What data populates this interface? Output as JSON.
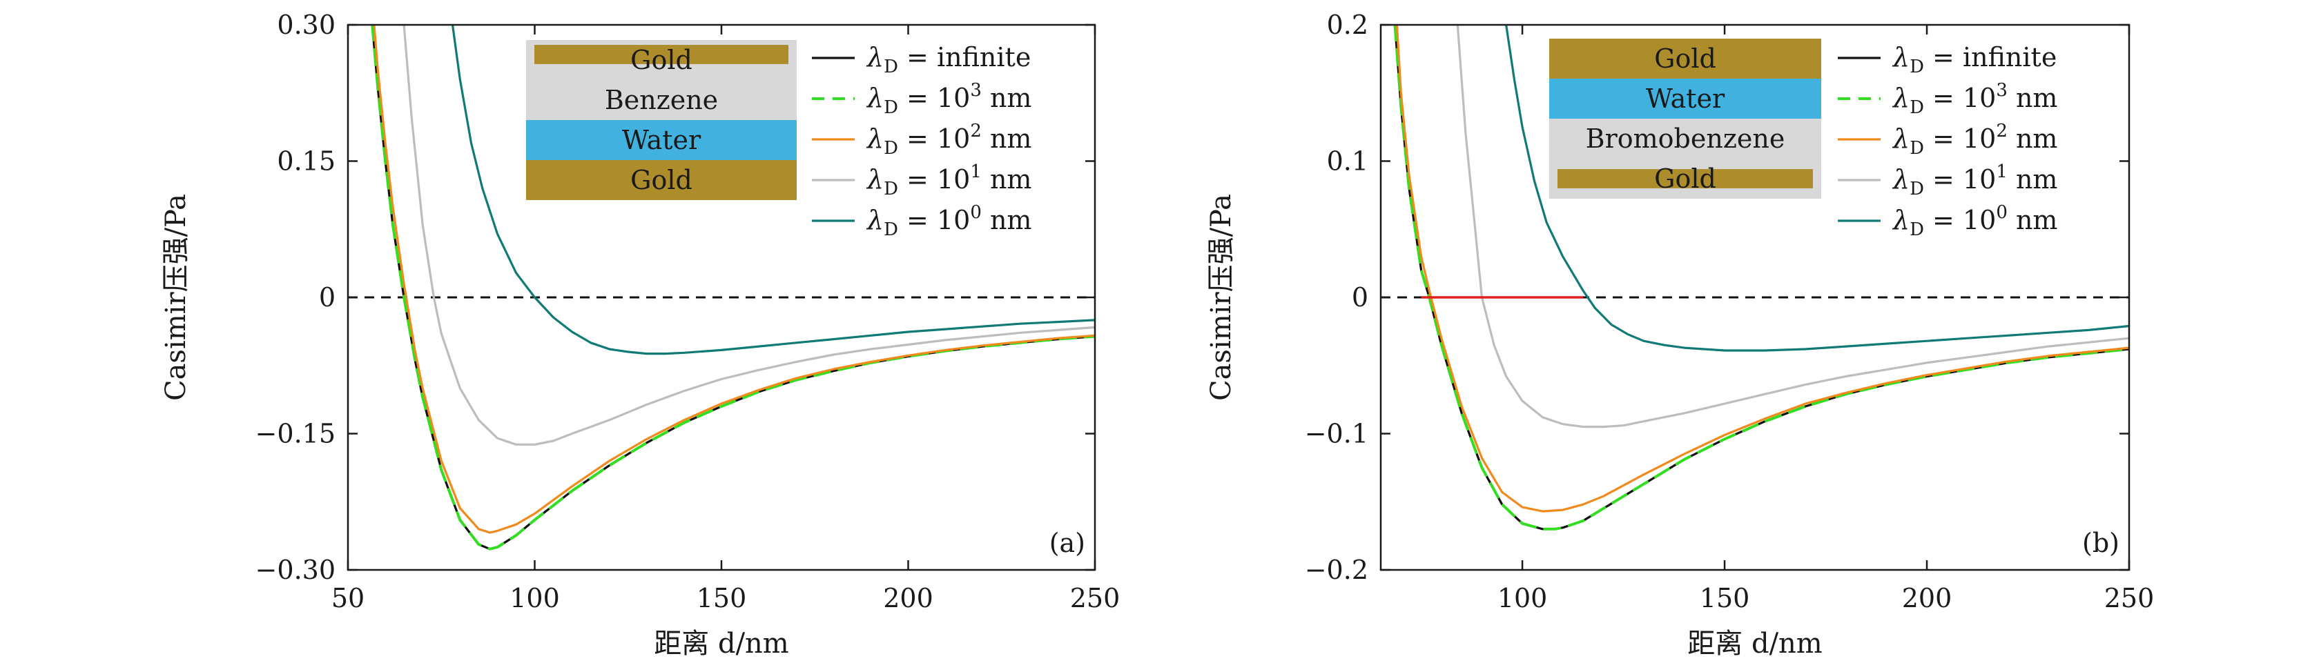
{
  "figure": {
    "background": "#ffffff"
  },
  "colors": {
    "infinite": "#111111",
    "l3": "#33dd22",
    "l2": "#f08a1c",
    "l1": "#bdbdbd",
    "l0": "#0f7a76",
    "gold": "#ad8c2c",
    "water": "#41b1e0",
    "liquid": "#d8d8d8",
    "zero_line": "#111111",
    "highlight": "#e02020"
  },
  "chart_data": [
    {
      "type": "line",
      "panel_label": "(a)",
      "xlabel": "距离 d/nm",
      "ylabel": "Casimir压强/Pa",
      "xlim": [
        50,
        250
      ],
      "ylim": [
        -0.3,
        0.3
      ],
      "xticks": [
        50,
        100,
        150,
        200,
        250
      ],
      "xtick_labels": [
        "50",
        "100",
        "150",
        "200",
        "250"
      ],
      "yticks": [
        0.3,
        0.15,
        0,
        -0.15,
        -0.3
      ],
      "ytick_labels": [
        "0.30",
        "0.15",
        "0",
        "−0.15",
        "−0.30"
      ],
      "zero_line": true,
      "highlight_segment": null,
      "legend": {
        "position": "top-right",
        "entries": [
          {
            "prefix": "λ",
            "sub": "D",
            "mid": " = ",
            "base": "infinite",
            "sup": "",
            "unit": ""
          },
          {
            "prefix": "λ",
            "sub": "D",
            "mid": " = ",
            "base": "10",
            "sup": "3",
            "unit": " nm"
          },
          {
            "prefix": "λ",
            "sub": "D",
            "mid": " = ",
            "base": "10",
            "sup": "2",
            "unit": " nm"
          },
          {
            "prefix": "λ",
            "sub": "D",
            "mid": " = ",
            "base": "10",
            "sup": "1",
            "unit": " nm"
          },
          {
            "prefix": "λ",
            "sub": "D",
            "mid": " = ",
            "base": "10",
            "sup": "0",
            "unit": " nm"
          }
        ]
      },
      "layers": [
        {
          "label": "Gold",
          "kind": "gold-thin"
        },
        {
          "label": "Benzene",
          "kind": "liquid"
        },
        {
          "label": "Water",
          "kind": "water"
        },
        {
          "label": "Gold",
          "kind": "gold"
        }
      ],
      "series": [
        {
          "name": "λD = infinite",
          "color_key": "infinite",
          "dash": "none",
          "x": [
            56.5,
            58,
            60,
            62,
            65,
            68,
            70,
            75,
            80,
            85,
            88,
            90,
            95,
            100,
            110,
            120,
            130,
            140,
            150,
            160,
            170,
            180,
            190,
            200,
            210,
            220,
            230,
            240,
            250
          ],
          "y": [
            0.3,
            0.23,
            0.15,
            0.08,
            0.0,
            -0.07,
            -0.11,
            -0.19,
            -0.245,
            -0.272,
            -0.277,
            -0.275,
            -0.262,
            -0.245,
            -0.213,
            -0.185,
            -0.16,
            -0.138,
            -0.12,
            -0.104,
            -0.091,
            -0.081,
            -0.072,
            -0.065,
            -0.059,
            -0.054,
            -0.05,
            -0.046,
            -0.043
          ]
        },
        {
          "name": "λD = 10^3 nm",
          "color_key": "l3",
          "dash": "dashed",
          "x": [
            56.5,
            58,
            60,
            62,
            65,
            68,
            70,
            75,
            80,
            85,
            88,
            90,
            95,
            100,
            110,
            120,
            130,
            140,
            150,
            160,
            170,
            180,
            190,
            200,
            210,
            220,
            230,
            240,
            250
          ],
          "y": [
            0.3,
            0.23,
            0.15,
            0.08,
            0.0,
            -0.07,
            -0.11,
            -0.19,
            -0.245,
            -0.272,
            -0.277,
            -0.275,
            -0.262,
            -0.245,
            -0.213,
            -0.185,
            -0.16,
            -0.138,
            -0.12,
            -0.104,
            -0.091,
            -0.081,
            -0.072,
            -0.065,
            -0.059,
            -0.054,
            -0.05,
            -0.046,
            -0.043
          ]
        },
        {
          "name": "λD = 10^2 nm",
          "color_key": "l2",
          "dash": "none",
          "x": [
            57,
            58,
            60,
            62,
            65,
            68,
            70,
            75,
            80,
            85,
            88,
            90,
            95,
            100,
            110,
            120,
            130,
            140,
            150,
            160,
            170,
            180,
            190,
            200,
            210,
            220,
            230,
            240,
            250
          ],
          "y": [
            0.3,
            0.25,
            0.17,
            0.1,
            0.015,
            -0.06,
            -0.1,
            -0.18,
            -0.232,
            -0.255,
            -0.259,
            -0.257,
            -0.25,
            -0.238,
            -0.208,
            -0.18,
            -0.156,
            -0.135,
            -0.117,
            -0.102,
            -0.089,
            -0.079,
            -0.071,
            -0.064,
            -0.058,
            -0.053,
            -0.049,
            -0.045,
            -0.042
          ]
        },
        {
          "name": "λD = 10^1 nm",
          "color_key": "l1",
          "dash": "none",
          "x": [
            65,
            67,
            70,
            73,
            75,
            80,
            85,
            90,
            95,
            100,
            105,
            110,
            120,
            130,
            140,
            150,
            160,
            170,
            180,
            190,
            200,
            210,
            220,
            230,
            240,
            250
          ],
          "y": [
            0.3,
            0.2,
            0.08,
            0.0,
            -0.04,
            -0.1,
            -0.135,
            -0.155,
            -0.162,
            -0.162,
            -0.158,
            -0.15,
            -0.135,
            -0.118,
            -0.103,
            -0.09,
            -0.08,
            -0.071,
            -0.063,
            -0.057,
            -0.052,
            -0.047,
            -0.043,
            -0.039,
            -0.036,
            -0.033
          ]
        },
        {
          "name": "λD = 10^0 nm",
          "color_key": "l0",
          "dash": "none",
          "x": [
            78,
            80,
            83,
            86,
            90,
            95,
            100,
            105,
            110,
            115,
            120,
            125,
            130,
            135,
            140,
            150,
            160,
            170,
            180,
            190,
            200,
            210,
            220,
            230,
            240,
            250
          ],
          "y": [
            0.3,
            0.24,
            0.17,
            0.12,
            0.07,
            0.027,
            0.0,
            -0.022,
            -0.038,
            -0.05,
            -0.057,
            -0.06,
            -0.062,
            -0.062,
            -0.061,
            -0.058,
            -0.054,
            -0.05,
            -0.046,
            -0.042,
            -0.038,
            -0.035,
            -0.032,
            -0.029,
            -0.027,
            -0.025
          ]
        }
      ]
    },
    {
      "type": "line",
      "panel_label": "(b)",
      "xlabel": "距离 d/nm",
      "ylabel": "Casimir压强/Pa",
      "xlim": [
        65,
        250
      ],
      "ylim": [
        -0.2,
        0.2
      ],
      "xticks": [
        100,
        150,
        200,
        250
      ],
      "xtick_labels": [
        "100",
        "150",
        "200",
        "250"
      ],
      "yticks": [
        0.2,
        0.1,
        0,
        -0.1,
        -0.2
      ],
      "ytick_labels": [
        "0.2",
        "0.1",
        "0",
        "−0.1",
        "−0.2"
      ],
      "zero_line": true,
      "highlight_segment": {
        "x": [
          75,
          115
        ],
        "y": 0
      },
      "legend": {
        "position": "top-right",
        "entries": [
          {
            "prefix": "λ",
            "sub": "D",
            "mid": " = ",
            "base": "infinite",
            "sup": "",
            "unit": ""
          },
          {
            "prefix": "λ",
            "sub": "D",
            "mid": " = ",
            "base": "10",
            "sup": "3",
            "unit": " nm"
          },
          {
            "prefix": "λ",
            "sub": "D",
            "mid": " = ",
            "base": "10",
            "sup": "2",
            "unit": " nm"
          },
          {
            "prefix": "λ",
            "sub": "D",
            "mid": " = ",
            "base": "10",
            "sup": "1",
            "unit": " nm"
          },
          {
            "prefix": "λ",
            "sub": "D",
            "mid": " = ",
            "base": "10",
            "sup": "0",
            "unit": " nm"
          }
        ]
      },
      "layers": [
        {
          "label": "Gold",
          "kind": "gold"
        },
        {
          "label": "Water",
          "kind": "water"
        },
        {
          "label": "Bromobenzene",
          "kind": "liquid"
        },
        {
          "label": "Gold",
          "kind": "gold-thin"
        }
      ],
      "series": [
        {
          "name": "λD = infinite",
          "color_key": "infinite",
          "dash": "none",
          "x": [
            68.5,
            70,
            72,
            75,
            77,
            80,
            85,
            90,
            95,
            100,
            105,
            108,
            110,
            115,
            120,
            130,
            140,
            150,
            160,
            170,
            180,
            190,
            200,
            210,
            220,
            230,
            240,
            250
          ],
          "y": [
            0.2,
            0.14,
            0.08,
            0.02,
            0.0,
            -0.035,
            -0.085,
            -0.125,
            -0.152,
            -0.166,
            -0.17,
            -0.17,
            -0.169,
            -0.164,
            -0.155,
            -0.137,
            -0.119,
            -0.104,
            -0.091,
            -0.08,
            -0.071,
            -0.064,
            -0.058,
            -0.053,
            -0.048,
            -0.044,
            -0.041,
            -0.038
          ]
        },
        {
          "name": "λD = 10^3 nm",
          "color_key": "l3",
          "dash": "dashed",
          "x": [
            68.5,
            70,
            72,
            75,
            77,
            80,
            85,
            90,
            95,
            100,
            105,
            108,
            110,
            115,
            120,
            130,
            140,
            150,
            160,
            170,
            180,
            190,
            200,
            210,
            220,
            230,
            240,
            250
          ],
          "y": [
            0.2,
            0.14,
            0.08,
            0.02,
            0.0,
            -0.035,
            -0.085,
            -0.125,
            -0.152,
            -0.166,
            -0.17,
            -0.17,
            -0.169,
            -0.164,
            -0.155,
            -0.137,
            -0.119,
            -0.104,
            -0.091,
            -0.08,
            -0.071,
            -0.064,
            -0.058,
            -0.053,
            -0.048,
            -0.044,
            -0.041,
            -0.038
          ]
        },
        {
          "name": "λD = 10^2 nm",
          "color_key": "l2",
          "dash": "none",
          "x": [
            69,
            70,
            72,
            75,
            77,
            80,
            85,
            90,
            95,
            100,
            105,
            110,
            115,
            120,
            130,
            140,
            150,
            160,
            170,
            180,
            190,
            200,
            210,
            220,
            230,
            240,
            250
          ],
          "y": [
            0.2,
            0.15,
            0.09,
            0.03,
            0.005,
            -0.03,
            -0.08,
            -0.118,
            -0.143,
            -0.154,
            -0.157,
            -0.156,
            -0.152,
            -0.146,
            -0.13,
            -0.115,
            -0.101,
            -0.089,
            -0.078,
            -0.07,
            -0.063,
            -0.057,
            -0.052,
            -0.047,
            -0.043,
            -0.04,
            -0.037
          ]
        },
        {
          "name": "λD = 10^1 nm",
          "color_key": "l1",
          "dash": "none",
          "x": [
            84,
            86,
            88,
            90,
            93,
            96,
            100,
            105,
            110,
            115,
            120,
            125,
            130,
            140,
            150,
            160,
            170,
            180,
            190,
            200,
            210,
            220,
            230,
            240,
            250
          ],
          "y": [
            0.2,
            0.12,
            0.06,
            0.0,
            -0.035,
            -0.058,
            -0.076,
            -0.088,
            -0.093,
            -0.095,
            -0.095,
            -0.094,
            -0.091,
            -0.085,
            -0.078,
            -0.071,
            -0.064,
            -0.058,
            -0.053,
            -0.048,
            -0.044,
            -0.04,
            -0.036,
            -0.033,
            -0.03
          ]
        },
        {
          "name": "λD = 10^0 nm",
          "color_key": "l0",
          "dash": "none",
          "x": [
            96,
            98,
            100,
            103,
            106,
            110,
            115,
            118,
            122,
            126,
            130,
            135,
            140,
            150,
            160,
            170,
            180,
            190,
            200,
            210,
            220,
            230,
            240,
            250
          ],
          "y": [
            0.2,
            0.16,
            0.125,
            0.085,
            0.055,
            0.03,
            0.005,
            -0.008,
            -0.02,
            -0.027,
            -0.032,
            -0.035,
            -0.037,
            -0.039,
            -0.039,
            -0.038,
            -0.036,
            -0.034,
            -0.032,
            -0.03,
            -0.028,
            -0.026,
            -0.024,
            -0.021
          ]
        }
      ]
    }
  ]
}
